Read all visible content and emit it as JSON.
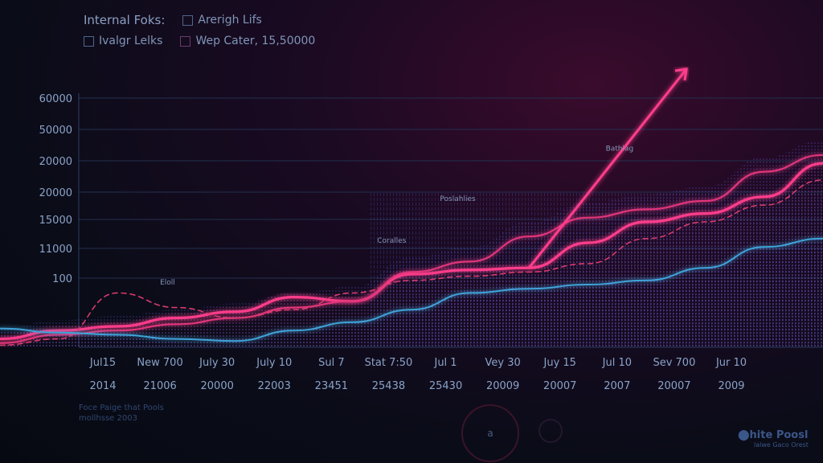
{
  "legend": {
    "row1": [
      {
        "label": "Internal Foks:",
        "has_box": false
      },
      {
        "label": "Arerigh Lifs",
        "has_box": true
      }
    ],
    "row2": [
      {
        "label": "Ivalgr Lelks",
        "has_box": true
      },
      {
        "label": "Wep Cater, 15,50000",
        "has_box": true
      }
    ]
  },
  "footer": {
    "left_line1": "Foce Paige that Pools",
    "left_line2": "mollhsse 2003",
    "play_label": "a",
    "brand_line1": "⬤hite Poosl",
    "brand_line2": "lalwe Gaco Orest"
  },
  "colors": {
    "primary_line": "#ff3d8b",
    "secondary_line": "#e0367a",
    "dashed_line": "#d83a6c",
    "blue_wave": "#3fa3d8",
    "purple_mesh": "#5a4fd0",
    "grid": "#22304f"
  },
  "chart_data": {
    "type": "line",
    "title": "",
    "xlabel": "",
    "ylabel": "",
    "y_tick_labels": [
      "60000",
      "50000",
      "20000",
      "20000",
      "15000",
      "11000",
      "100"
    ],
    "x_tick_labels": [
      {
        "top": "Jul15",
        "bottom": "2014"
      },
      {
        "top": "New 700",
        "bottom": "21006"
      },
      {
        "top": "July 30",
        "bottom": "20000"
      },
      {
        "top": "July 10",
        "bottom": "22003"
      },
      {
        "top": "Sul 7",
        "bottom": "23451"
      },
      {
        "top": "Stat 7:50",
        "bottom": "25438"
      },
      {
        "top": "Jul 1",
        "bottom": "25430"
      },
      {
        "top": "Vey 30",
        "bottom": "20009"
      },
      {
        "top": "Juy 15",
        "bottom": "20007"
      },
      {
        "top": "Jul 10",
        "bottom": "2007"
      },
      {
        "top": "Sev 700",
        "bottom": "20007"
      },
      {
        "top": "Jur 10",
        "bottom": "2009"
      }
    ],
    "ylim": [
      0,
      60000
    ],
    "grid": true,
    "annotations": [
      {
        "text": "Eloll",
        "x_index": 1,
        "y": 15000
      },
      {
        "text": "Coralles",
        "x_index": 4.8,
        "y": 25000
      },
      {
        "text": "Poslahlies",
        "x_index": 5.9,
        "y": 35000
      },
      {
        "text": "Bathlag",
        "x_index": 8.8,
        "y": 47000
      }
    ],
    "series": [
      {
        "values": [
          2000,
          4000,
          5000,
          7000,
          8500,
          12000,
          11000,
          17500,
          18500,
          19000,
          25000,
          30000,
          32000,
          36000,
          44000
        ]
      },
      {
        "values": [
          1000,
          3000,
          4000,
          5500,
          7000,
          9500,
          11000,
          18000,
          20500,
          26500,
          31000,
          33000,
          35000,
          42000,
          46000
        ]
      },
      {
        "values": [
          500,
          2000,
          13000,
          9500,
          7000,
          9000,
          13000,
          16000,
          17000,
          18000,
          20000,
          26000,
          30000,
          34000,
          40000
        ]
      },
      {
        "values": [
          4500,
          3500,
          3000,
          2000,
          1500,
          4000,
          6000,
          9000,
          13000,
          14000,
          15000,
          16000,
          19000,
          24000,
          26000
        ]
      }
    ]
  }
}
